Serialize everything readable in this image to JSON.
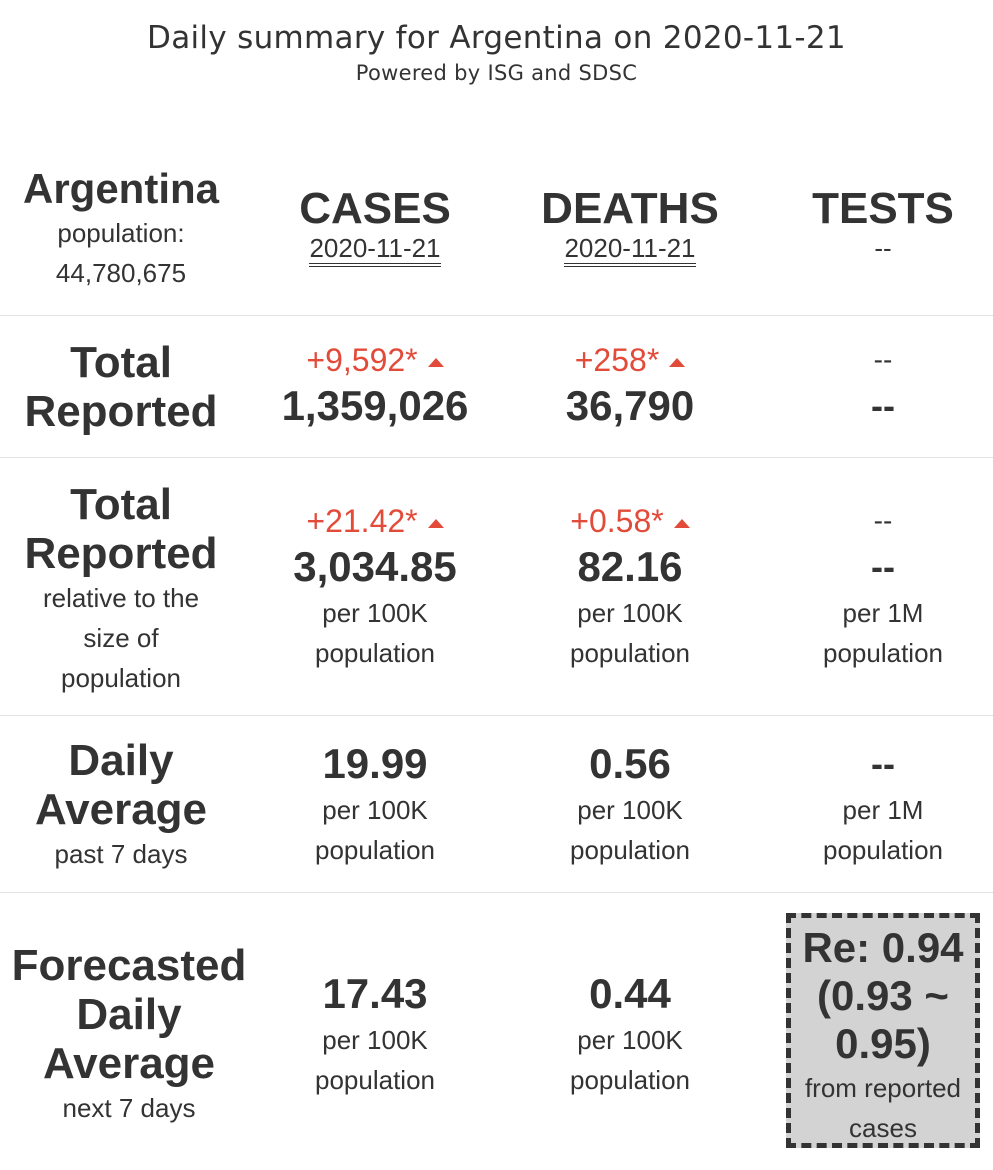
{
  "header": {
    "title": "Daily summary for Argentina on 2020-11-21",
    "subtitle": "Powered by ISG and SDSC"
  },
  "country": {
    "name": "Argentina",
    "population_label": "population:",
    "population_value": "44,780,675"
  },
  "columns": {
    "cases": {
      "label": "CASES",
      "date": "2020-11-21"
    },
    "deaths": {
      "label": "DEATHS",
      "date": "2020-11-21"
    },
    "tests": {
      "label": "TESTS",
      "date": "--"
    }
  },
  "total_reported": {
    "label_line1": "Total",
    "label_line2": "Reported",
    "cases_delta": "+9,592*",
    "cases_value": "1,359,026",
    "deaths_delta": "+258*",
    "deaths_value": "36,790",
    "tests_delta": "--",
    "tests_value": "--"
  },
  "relative": {
    "label_line1": "Total",
    "label_line2": "Reported",
    "label_sub1": "relative to the",
    "label_sub2": "size of",
    "label_sub3": "population",
    "cases_delta": "+21.42*",
    "cases_value": "3,034.85",
    "cases_unit1": "per 100K",
    "cases_unit2": "population",
    "deaths_delta": "+0.58*",
    "deaths_value": "82.16",
    "deaths_unit1": "per 100K",
    "deaths_unit2": "population",
    "tests_delta": "--",
    "tests_value": "--",
    "tests_unit1": "per 1M",
    "tests_unit2": "population"
  },
  "daily_average": {
    "label_line1": "Daily",
    "label_line2": "Average",
    "label_sub": "past 7 days",
    "cases_value": "19.99",
    "cases_unit1": "per 100K",
    "cases_unit2": "population",
    "deaths_value": "0.56",
    "deaths_unit1": "per 100K",
    "deaths_unit2": "population",
    "tests_value": "--",
    "tests_unit1": "per 1M",
    "tests_unit2": "population"
  },
  "forecast": {
    "label_line1": "Forecasted",
    "label_line2": "Daily",
    "label_line3": "Average",
    "label_sub": "next 7 days",
    "cases_value": "17.43",
    "cases_unit1": "per 100K",
    "cases_unit2": "population",
    "deaths_value": "0.44",
    "deaths_unit1": "per 100K",
    "deaths_unit2": "population",
    "re_line1": "Re: 0.94",
    "re_line2": "(0.93 ~",
    "re_line3": "0.95)",
    "re_note1": "from reported",
    "re_note2": "cases"
  },
  "colors": {
    "text": "#333333",
    "increase": "#e24b3a",
    "re_box_bg": "#d3d3d3",
    "separator": "#e3e3e3"
  }
}
